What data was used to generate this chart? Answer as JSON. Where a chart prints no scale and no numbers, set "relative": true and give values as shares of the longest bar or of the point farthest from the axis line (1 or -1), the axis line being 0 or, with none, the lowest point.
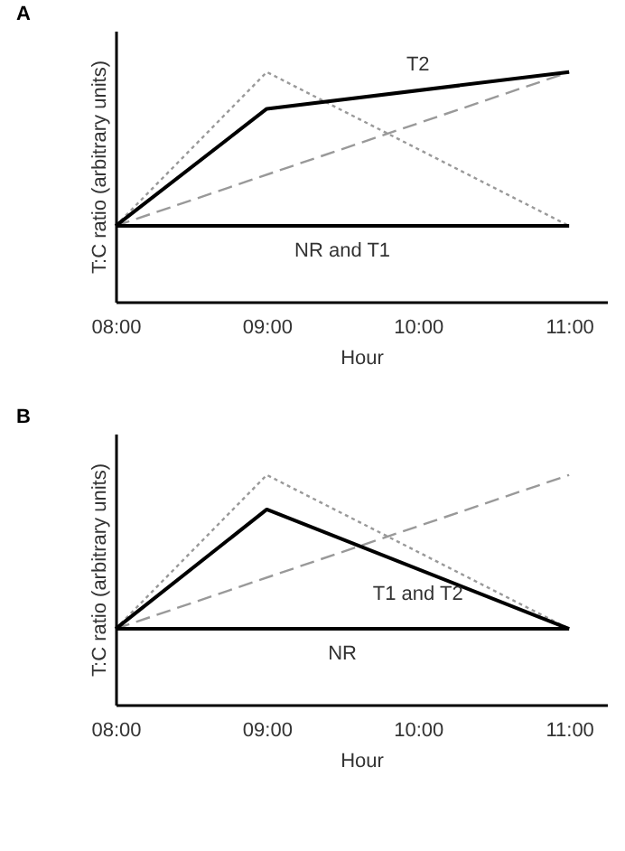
{
  "chart_data": [
    {
      "type": "line",
      "title": "A",
      "xlabel": "Hour",
      "ylabel": "T:C ratio (arbitrary units)",
      "relative": true,
      "xlim": [
        8,
        11.25
      ],
      "xticks": [
        {
          "value": 8,
          "label": "08:00"
        },
        {
          "value": 9,
          "label": "09:00"
        },
        {
          "value": 10,
          "label": "10:00"
        },
        {
          "value": 11,
          "label": "11:00"
        }
      ],
      "grid": false,
      "legend": false,
      "marker": "none",
      "series": [
        {
          "color": "#999999",
          "line_style": "dotted",
          "x": [
            8,
            9,
            11
          ],
          "values": [
            0.33,
            1,
            0.33
          ]
        },
        {
          "color": "#999999",
          "line_style": "dashed",
          "x": [
            8,
            11
          ],
          "values": [
            0.33,
            1
          ]
        },
        {
          "name": "T2",
          "color": "#000000",
          "line_style": "solid",
          "x": [
            8,
            9,
            11
          ],
          "values": [
            0.33,
            0.84,
            1
          ]
        },
        {
          "name": "NR and T1",
          "color": "#000000",
          "line_style": "solid",
          "x": [
            8,
            11
          ],
          "values": [
            0.33,
            0.33
          ]
        }
      ]
    },
    {
      "type": "line",
      "title": "B",
      "xlabel": "Hour",
      "ylabel": "T:C ratio (arbitrary units)",
      "relative": true,
      "xlim": [
        8,
        11.25
      ],
      "xticks": [
        {
          "value": 8,
          "label": "08:00"
        },
        {
          "value": 9,
          "label": "09:00"
        },
        {
          "value": 10,
          "label": "10:00"
        },
        {
          "value": 11,
          "label": "11:00"
        }
      ],
      "grid": false,
      "legend": false,
      "marker": "none",
      "series": [
        {
          "color": "#999999",
          "line_style": "dotted",
          "x": [
            8,
            9,
            11
          ],
          "values": [
            0.33,
            1,
            0.33
          ]
        },
        {
          "color": "#999999",
          "line_style": "dashed",
          "x": [
            8,
            11
          ],
          "values": [
            0.33,
            1
          ]
        },
        {
          "name": "T1 and T2",
          "color": "#000000",
          "line_style": "solid",
          "x": [
            8,
            9,
            11
          ],
          "values": [
            0.33,
            0.85,
            0.33
          ]
        },
        {
          "name": "NR",
          "color": "#000000",
          "line_style": "solid",
          "x": [
            8,
            11
          ],
          "values": [
            0.33,
            0.33
          ]
        }
      ]
    }
  ]
}
